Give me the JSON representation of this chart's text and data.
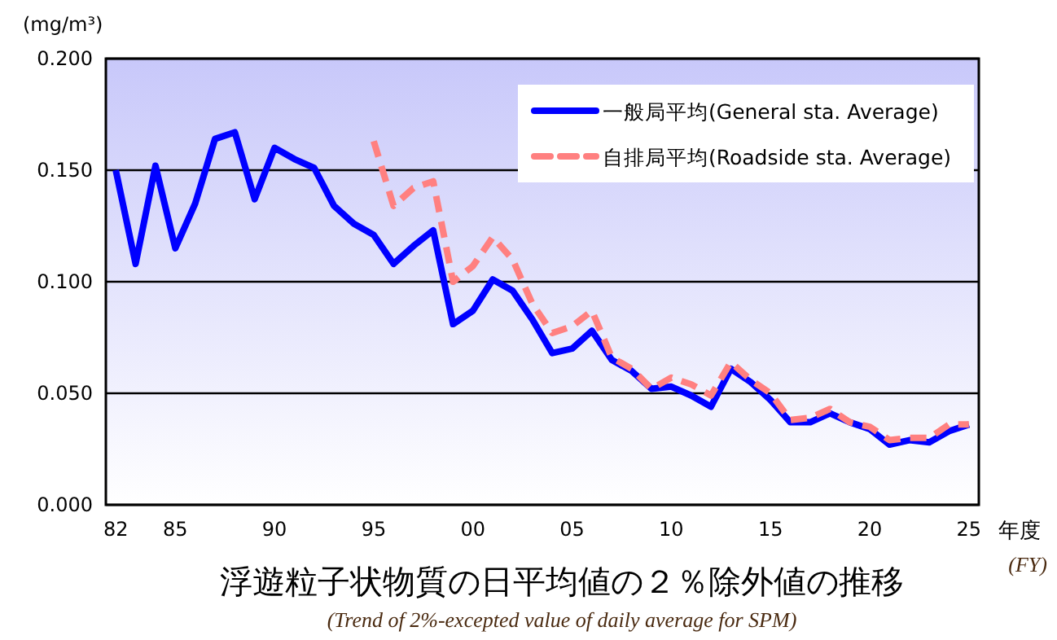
{
  "chart_data": {
    "type": "line",
    "title": "浮遊粒子状物質の日平均値の２％除外値の推移",
    "subtitle": "(Trend of 2%-excepted value of daily average for SPM)",
    "xlabel": "年度",
    "ylabel": "(mg/m³)",
    "annotations": [
      "(FY)"
    ],
    "xlim": [
      1981.5,
      2025.5
    ],
    "xticks": [
      {
        "value": 1982,
        "label": "82"
      },
      {
        "value": 1985,
        "label": "85"
      },
      {
        "value": 1990,
        "label": "90"
      },
      {
        "value": 1995,
        "label": "95"
      },
      {
        "value": 2000,
        "label": "00"
      },
      {
        "value": 2005,
        "label": "05"
      },
      {
        "value": 2010,
        "label": "10"
      },
      {
        "value": 2015,
        "label": "15"
      },
      {
        "value": 2020,
        "label": "20"
      },
      {
        "value": 2025,
        "label": "25"
      }
    ],
    "ylim": [
      0,
      0.2
    ],
    "yticks": [
      {
        "value": 0,
        "label": "0.000"
      },
      {
        "value": 0.05,
        "label": "0.050"
      },
      {
        "value": 0.1,
        "label": "0.100"
      },
      {
        "value": 0.15,
        "label": "0.150"
      },
      {
        "value": 0.2,
        "label": "0.200"
      }
    ],
    "grid": "y",
    "legend": "top right",
    "marker": "none",
    "series": [
      {
        "name": "一般局平均(General sta. Average)",
        "color": "#0000ff",
        "line_style": "solid",
        "x": [
          1982,
          1983,
          1984,
          1985,
          1986,
          1987,
          1988,
          1989,
          1990,
          1991,
          1992,
          1993,
          1994,
          1995,
          1996,
          1997,
          1998,
          1999,
          2000,
          2001,
          2002,
          2003,
          2004,
          2005,
          2006,
          2007,
          2008,
          2009,
          2010,
          2011,
          2012,
          2013,
          2014,
          2015,
          2016,
          2017,
          2018,
          2019,
          2020,
          2021,
          2022,
          2023,
          2024,
          2025
        ],
        "values": [
          0.15,
          0.108,
          0.152,
          0.115,
          0.135,
          0.164,
          0.167,
          0.137,
          0.16,
          0.155,
          0.151,
          0.134,
          0.126,
          0.121,
          0.108,
          0.116,
          0.123,
          0.081,
          0.087,
          0.101,
          0.096,
          0.083,
          0.068,
          0.07,
          0.078,
          0.065,
          0.06,
          0.052,
          0.053,
          0.049,
          0.044,
          0.061,
          0.055,
          0.047,
          0.037,
          0.037,
          0.041,
          0.037,
          0.034,
          0.027,
          0.029,
          0.028,
          0.033,
          0.036
        ]
      },
      {
        "name": "自排局平均(Roadside sta. Average)",
        "color": "#ff8080",
        "line_style": "dashed",
        "x": [
          1995,
          1996,
          1997,
          1998,
          1999,
          2000,
          2001,
          2002,
          2003,
          2004,
          2005,
          2006,
          2007,
          2008,
          2009,
          2010,
          2011,
          2012,
          2013,
          2014,
          2015,
          2016,
          2017,
          2018,
          2019,
          2020,
          2021,
          2022,
          2023,
          2024,
          2025
        ],
        "values": [
          0.163,
          0.134,
          0.142,
          0.145,
          0.1,
          0.107,
          0.12,
          0.11,
          0.09,
          0.077,
          0.08,
          0.087,
          0.066,
          0.061,
          0.052,
          0.057,
          0.054,
          0.049,
          0.064,
          0.056,
          0.05,
          0.038,
          0.039,
          0.043,
          0.037,
          0.035,
          0.029,
          0.03,
          0.03,
          0.036,
          0.036
        ]
      }
    ]
  }
}
